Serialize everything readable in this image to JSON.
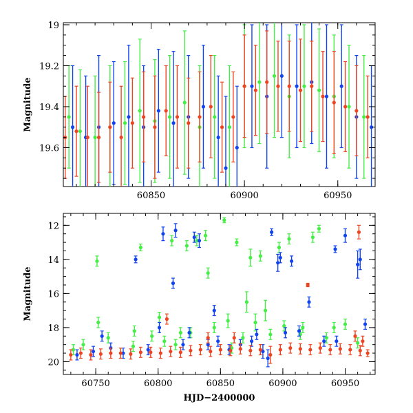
{
  "chart_data": [
    {
      "type": "scatter",
      "panel": "top",
      "title": "",
      "xlabel": "",
      "ylabel": "Magnitude",
      "xlim": [
        60803,
        60970
      ],
      "ylim": [
        19.79,
        18.99
      ],
      "y_inverted": true,
      "x_ticks": [
        60850,
        60900,
        60950
      ],
      "x_tick_labels": [
        "60850",
        "60900",
        "60950"
      ],
      "y_ticks": [
        19,
        19.2,
        19.4,
        19.6
      ],
      "y_tick_labels": [
        "19",
        "19.2",
        "19.4",
        "19.6"
      ],
      "grid": false,
      "series": [
        {
          "name": "green",
          "color": "#44ee44",
          "x": [
            60806,
            60812,
            60820,
            60828,
            60836,
            60844,
            60852,
            60860,
            60868,
            60876,
            60884,
            60892,
            60900,
            60908,
            60916,
            60924,
            60932,
            60940,
            60948,
            60956,
            60964
          ],
          "y": [
            19.45,
            19.52,
            19.55,
            19.5,
            19.48,
            19.42,
            19.47,
            19.45,
            19.38,
            19.5,
            19.45,
            19.5,
            19.3,
            19.28,
            19.25,
            19.35,
            19.3,
            19.32,
            19.35,
            19.4,
            19.45
          ],
          "yerr": [
            0.25,
            0.3,
            0.3,
            0.3,
            0.3,
            0.35,
            0.3,
            0.3,
            0.35,
            0.3,
            0.3,
            0.3,
            0.3,
            0.3,
            0.3,
            0.3,
            0.3,
            0.3,
            0.3,
            0.3,
            0.3
          ]
        },
        {
          "name": "blue",
          "color": "#1144ee",
          "x": [
            60808,
            60815,
            60822,
            60830,
            60838,
            60846,
            60854,
            60862,
            60870,
            60878,
            60886,
            60890,
            60896,
            60904,
            60912,
            60920,
            60928,
            60936,
            60944,
            60952,
            60960,
            60968
          ],
          "y": [
            19.5,
            19.55,
            19.5,
            19.48,
            19.45,
            19.5,
            19.42,
            19.48,
            19.45,
            19.4,
            19.55,
            19.7,
            19.6,
            19.3,
            19.35,
            19.25,
            19.3,
            19.28,
            19.35,
            19.3,
            19.45,
            19.5
          ],
          "yerr": [
            0.3,
            0.3,
            0.35,
            0.3,
            0.35,
            0.3,
            0.3,
            0.35,
            0.3,
            0.3,
            0.3,
            0.35,
            0.3,
            0.3,
            0.35,
            0.3,
            0.3,
            0.3,
            0.35,
            0.3,
            0.3,
            0.3
          ]
        },
        {
          "name": "red",
          "color": "#ee4422",
          "x": [
            60804,
            60810,
            60816,
            60822,
            60828,
            60834,
            60840,
            60846,
            60852,
            60858,
            60864,
            60870,
            60876,
            60882,
            60888,
            60894,
            60900,
            60906,
            60912,
            60918,
            60924,
            60930,
            60936,
            60942,
            60948,
            60954,
            60960,
            60966
          ],
          "y": [
            19.55,
            19.52,
            19.55,
            19.55,
            19.5,
            19.55,
            19.48,
            19.45,
            19.5,
            19.42,
            19.45,
            19.48,
            19.45,
            19.4,
            19.5,
            19.45,
            19.3,
            19.32,
            19.28,
            19.3,
            19.3,
            19.32,
            19.3,
            19.35,
            19.38,
            19.4,
            19.42,
            19.45
          ],
          "yerr": [
            0.2,
            0.22,
            0.25,
            0.22,
            0.22,
            0.25,
            0.22,
            0.22,
            0.25,
            0.22,
            0.25,
            0.22,
            0.22,
            0.25,
            0.22,
            0.22,
            0.25,
            0.22,
            0.25,
            0.22,
            0.22,
            0.25,
            0.22,
            0.22,
            0.25,
            0.22,
            0.22,
            0.2
          ]
        }
      ]
    },
    {
      "type": "scatter",
      "panel": "bottom",
      "title": "",
      "xlabel": "HJD−2400000",
      "ylabel": "Magnitude",
      "xlim": [
        60724,
        60974
      ],
      "ylim": [
        20.75,
        11.3
      ],
      "y_inverted": true,
      "x_ticks": [
        60750,
        60800,
        60850,
        60900,
        60950
      ],
      "x_tick_labels": [
        "60750",
        "60800",
        "60850",
        "60900",
        "60950"
      ],
      "y_ticks": [
        12,
        14,
        16,
        18,
        20
      ],
      "y_tick_labels": [
        "12",
        "14",
        "16",
        "18",
        "20"
      ],
      "grid": false,
      "series": [
        {
          "name": "green",
          "color": "#44ee44",
          "x": [
            60732,
            60740,
            60751,
            60760,
            60770,
            60780,
            60786,
            60795,
            60805,
            60811,
            60818,
            60823,
            60831,
            60838,
            60845,
            60853,
            60859,
            60863,
            60868,
            60874,
            60878,
            60882,
            60890,
            60897,
            60905,
            60916,
            60924,
            60935,
            60941,
            60950,
            60960,
            60752,
            60781,
            60801,
            60814,
            60826,
            60840,
            60856,
            60871,
            60886,
            60901,
            60914,
            60929
          ],
          "y": [
            19.3,
            19.0,
            14.1,
            18.6,
            19.5,
            19.1,
            13.3,
            18.5,
            18.8,
            12.9,
            18.3,
            13.2,
            12.9,
            12.6,
            18.0,
            11.7,
            19.2,
            13.0,
            18.6,
            13.9,
            17.7,
            13.8,
            18.4,
            13.3,
            12.8,
            18.0,
            12.7,
            18.6,
            18.0,
            17.8,
            18.9,
            17.7,
            18.2,
            17.4,
            19.0,
            18.3,
            14.8,
            17.6,
            16.5,
            17.0,
            17.9,
            18.4,
            12.2
          ],
          "yerr": [
            0.3,
            0.3,
            0.3,
            0.3,
            0.3,
            0.3,
            0.2,
            0.3,
            0.3,
            0.3,
            0.3,
            0.3,
            0.3,
            0.3,
            0.3,
            0.15,
            0.3,
            0.2,
            0.3,
            0.5,
            0.5,
            0.3,
            0.3,
            0.3,
            0.3,
            0.3,
            0.3,
            0.3,
            0.3,
            0.3,
            0.3,
            0.3,
            0.3,
            0.3,
            0.3,
            0.3,
            0.3,
            0.4,
            0.6,
            0.6,
            0.3,
            0.3,
            0.2
          ]
        },
        {
          "name": "blue",
          "color": "#1144ee",
          "x": [
            60735,
            60748,
            60762,
            60772,
            60782,
            60792,
            60804,
            60812,
            60814,
            60820,
            60829,
            60833,
            60840,
            60848,
            60857,
            60866,
            60875,
            60884,
            60891,
            60896,
            60898,
            60907,
            60913,
            60921,
            60933,
            60942,
            60950,
            60960,
            60962,
            60966,
            60755,
            60801,
            60825,
            60845,
            60879,
            60888,
            60902,
            60943
          ],
          "y": [
            19.6,
            19.4,
            19.2,
            19.5,
            14.0,
            19.3,
            12.5,
            15.4,
            12.3,
            19.0,
            12.7,
            12.9,
            19.0,
            18.8,
            19.3,
            19.0,
            18.8,
            19.4,
            12.4,
            14.2,
            13.9,
            14.1,
            18.2,
            16.5,
            18.8,
            13.4,
            12.6,
            14.3,
            14.0,
            17.8,
            18.5,
            18.0,
            18.3,
            17.0,
            18.4,
            19.8,
            18.3,
            18.8
          ],
          "yerr": [
            0.3,
            0.3,
            0.3,
            0.3,
            0.2,
            0.3,
            0.4,
            0.3,
            0.4,
            0.3,
            0.3,
            0.4,
            0.3,
            0.3,
            0.3,
            0.3,
            0.3,
            0.4,
            0.2,
            0.5,
            0.3,
            0.3,
            0.3,
            0.3,
            0.3,
            0.2,
            0.4,
            0.8,
            0.6,
            0.3,
            0.3,
            0.3,
            0.3,
            0.3,
            0.3,
            0.5,
            0.3,
            0.3
          ]
        },
        {
          "name": "red",
          "color": "#ee4422",
          "x": [
            60730,
            60738,
            60746,
            60754,
            60762,
            60770,
            60778,
            60786,
            60794,
            60802,
            60810,
            60818,
            60826,
            60834,
            60842,
            60850,
            60858,
            60866,
            60874,
            60882,
            60890,
            60898,
            60906,
            60914,
            60922,
            60930,
            60938,
            60946,
            60954,
            60962,
            60968,
            60807,
            60840,
            60861,
            60920,
            60958,
            60961,
            60964
          ],
          "y": [
            19.6,
            19.5,
            19.6,
            19.55,
            19.5,
            19.5,
            19.55,
            19.45,
            19.45,
            19.5,
            19.4,
            19.45,
            19.35,
            19.3,
            19.4,
            19.3,
            19.35,
            19.25,
            19.35,
            19.3,
            19.6,
            19.3,
            19.2,
            19.25,
            19.3,
            19.2,
            19.3,
            19.25,
            19.3,
            19.35,
            19.5,
            17.5,
            18.6,
            18.6,
            15.5,
            18.5,
            12.4,
            18.8
          ],
          "yerr": [
            0.3,
            0.3,
            0.3,
            0.3,
            0.3,
            0.3,
            0.3,
            0.3,
            0.3,
            0.3,
            0.3,
            0.3,
            0.3,
            0.3,
            0.3,
            0.3,
            0.3,
            0.3,
            0.3,
            0.3,
            0.5,
            0.3,
            0.3,
            0.3,
            0.3,
            0.3,
            0.3,
            0.3,
            0.3,
            0.3,
            0.2,
            0.3,
            0.3,
            0.3,
            0.1,
            0.3,
            0.4,
            0.3
          ]
        }
      ]
    }
  ]
}
